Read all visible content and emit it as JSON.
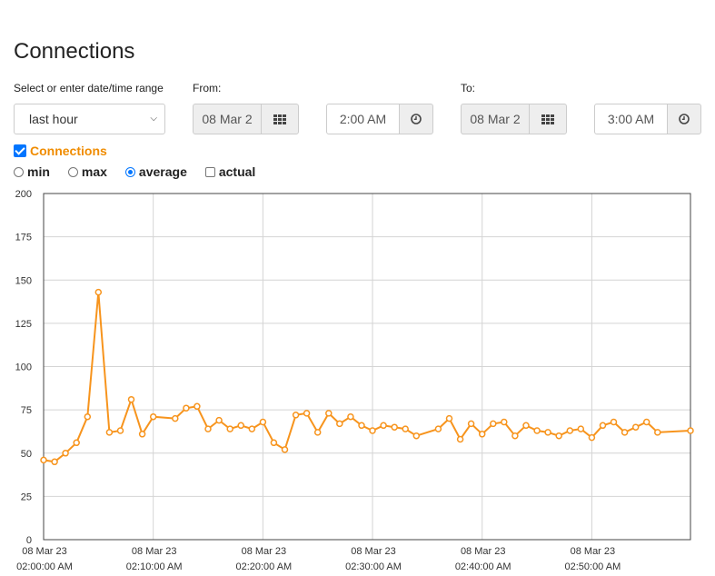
{
  "page": {
    "title": "Connections"
  },
  "range": {
    "label": "Select or enter date/time range",
    "selected": "last hour"
  },
  "from": {
    "label": "From:",
    "date": "08 Mar 2",
    "time": "2:00 AM"
  },
  "to": {
    "label": "To:",
    "date": "08 Mar 2",
    "time": "3:00 AM"
  },
  "series_toggle": {
    "label": "Connections",
    "checked": true
  },
  "modes": {
    "min": "min",
    "max": "max",
    "average": "average",
    "actual": "actual",
    "selected": "average"
  },
  "icons": {
    "calendar": "calendar-grid-icon",
    "clock": "clock-icon"
  },
  "colors": {
    "series": "#f7941d",
    "accent": "#0075ff"
  },
  "chart_data": {
    "type": "line",
    "title": "",
    "xlabel": "",
    "ylabel": "",
    "ylim": [
      0,
      200
    ],
    "yticks": [
      0,
      25,
      50,
      75,
      100,
      125,
      150,
      175,
      200
    ],
    "xlim_minutes": [
      0,
      59
    ],
    "xticks": [
      {
        "date": "08 Mar 23",
        "time": "02:00:00 AM",
        "minute": 0
      },
      {
        "date": "08 Mar 23",
        "time": "02:10:00 AM",
        "minute": 10
      },
      {
        "date": "08 Mar 23",
        "time": "02:20:00 AM",
        "minute": 20
      },
      {
        "date": "08 Mar 23",
        "time": "02:30:00 AM",
        "minute": 30
      },
      {
        "date": "08 Mar 23",
        "time": "02:40:00 AM",
        "minute": 40
      },
      {
        "date": "08 Mar 23",
        "time": "02:50:00 AM",
        "minute": 50
      }
    ],
    "grid": true,
    "series": [
      {
        "name": "Connections",
        "x": [
          0,
          1,
          2,
          3,
          4,
          5,
          6,
          7,
          8,
          9,
          10,
          12,
          13,
          14,
          15,
          16,
          17,
          18,
          19,
          20,
          21,
          22,
          23,
          24,
          25,
          26,
          27,
          28,
          29,
          30,
          31,
          32,
          33,
          34,
          36,
          37,
          38,
          39,
          40,
          41,
          42,
          43,
          44,
          45,
          46,
          47,
          48,
          49,
          50,
          51,
          52,
          53,
          54,
          55,
          56,
          59
        ],
        "values": [
          46,
          45,
          50,
          56,
          71,
          143,
          62,
          63,
          81,
          61,
          71,
          70,
          76,
          77,
          64,
          69,
          64,
          66,
          64,
          68,
          56,
          52,
          72,
          73,
          62,
          73,
          67,
          71,
          66,
          63,
          66,
          65,
          64,
          60,
          64,
          70,
          58,
          67,
          61,
          67,
          68,
          60,
          66,
          63,
          62,
          60,
          63,
          64,
          59,
          66,
          68,
          62,
          65,
          68,
          62,
          63
        ]
      }
    ]
  }
}
